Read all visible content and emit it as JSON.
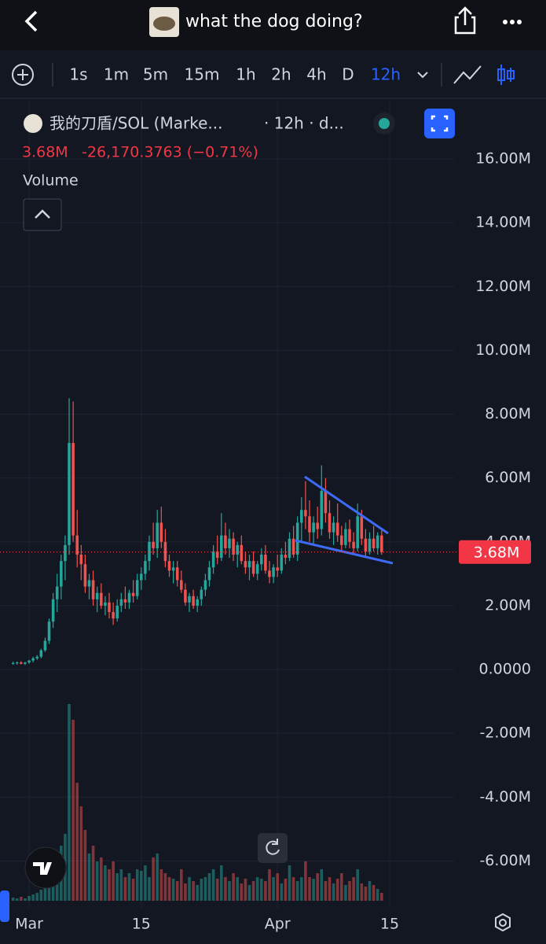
{
  "header": {
    "title": "what the dog doing?"
  },
  "toolbar": {
    "intervals": [
      "1s",
      "1m",
      "5m",
      "15m",
      "1h",
      "2h",
      "4h",
      "D",
      "12h"
    ]
  },
  "legend": {
    "symbol": "我的刀盾/SOL (Marke...",
    "meta": "· 12h · d...",
    "price": "3.68M",
    "change": "-26,170.3763 (−0.71%)",
    "volume_label": "Volume"
  },
  "chart_data": {
    "type": "candlestick",
    "x": [
      -2,
      -1.5,
      -1,
      -0.5,
      0,
      0.5,
      1,
      1.5,
      2,
      2.5,
      3,
      3.5,
      4,
      4.5,
      5,
      5.5,
      6,
      6.5,
      7,
      7.5,
      8,
      8.5,
      9,
      9.5,
      10,
      10.5,
      11,
      11.5,
      12,
      12.5,
      13,
      13.5,
      14,
      14.5,
      15,
      15.5,
      16,
      16.5,
      17,
      17.5,
      18,
      18.5,
      19,
      19.5,
      20,
      20.5,
      21,
      21.5,
      22,
      22.5,
      23,
      23.5,
      24,
      24.5,
      25,
      25.5,
      26,
      26.5,
      27,
      27.5,
      28,
      28.5,
      29,
      29.5,
      30,
      30.5,
      31,
      31.5,
      32,
      32.5,
      33,
      33.5,
      34,
      34.5,
      35,
      35.5,
      36,
      36.5,
      37,
      37.5,
      38,
      38.5,
      39,
      39.5,
      40,
      40.5,
      41,
      41.5,
      42,
      42.5,
      43,
      43.5,
      44
    ],
    "ohlc": [
      [
        0.2,
        0.25,
        0.15,
        0.2
      ],
      [
        0.2,
        0.25,
        0.15,
        0.22
      ],
      [
        0.22,
        0.26,
        0.16,
        0.18
      ],
      [
        0.18,
        0.24,
        0.14,
        0.22
      ],
      [
        0.22,
        0.3,
        0.18,
        0.28
      ],
      [
        0.28,
        0.4,
        0.22,
        0.35
      ],
      [
        0.35,
        0.45,
        0.3,
        0.4
      ],
      [
        0.4,
        0.65,
        0.35,
        0.6
      ],
      [
        0.6,
        1.0,
        0.55,
        0.9
      ],
      [
        0.9,
        1.6,
        0.8,
        1.5
      ],
      [
        1.5,
        2.4,
        1.3,
        2.2
      ],
      [
        2.2,
        3.0,
        1.8,
        2.6
      ],
      [
        2.6,
        3.6,
        2.2,
        3.4
      ],
      [
        3.4,
        4.2,
        2.8,
        3.9
      ],
      [
        3.9,
        8.5,
        3.6,
        7.1
      ],
      [
        7.1,
        8.4,
        4.0,
        4.2
      ],
      [
        4.2,
        5.0,
        3.2,
        3.6
      ],
      [
        3.6,
        3.9,
        2.8,
        3.3
      ],
      [
        3.3,
        3.6,
        2.4,
        2.6
      ],
      [
        2.6,
        3.0,
        2.2,
        2.8
      ],
      [
        2.8,
        3.1,
        2.0,
        2.2
      ],
      [
        2.2,
        2.6,
        1.8,
        2.4
      ],
      [
        2.4,
        2.7,
        1.9,
        2.0
      ],
      [
        2.0,
        2.3,
        1.7,
        2.1
      ],
      [
        2.1,
        2.4,
        1.6,
        1.8
      ],
      [
        1.8,
        2.1,
        1.4,
        1.6
      ],
      [
        1.6,
        2.2,
        1.5,
        2.0
      ],
      [
        2.0,
        2.4,
        1.8,
        2.2
      ],
      [
        2.2,
        2.6,
        1.9,
        2.1
      ],
      [
        2.1,
        2.5,
        1.9,
        2.4
      ],
      [
        2.4,
        2.8,
        2.1,
        2.3
      ],
      [
        2.3,
        3.0,
        2.2,
        2.8
      ],
      [
        2.8,
        3.2,
        2.5,
        3.0
      ],
      [
        3.0,
        3.6,
        2.8,
        3.4
      ],
      [
        3.4,
        4.2,
        3.1,
        4.0
      ],
      [
        4.0,
        4.6,
        3.6,
        3.8
      ],
      [
        3.8,
        5.0,
        3.5,
        4.6
      ],
      [
        4.6,
        5.1,
        3.8,
        4.0
      ],
      [
        4.0,
        4.4,
        3.2,
        3.4
      ],
      [
        3.4,
        3.6,
        2.9,
        3.1
      ],
      [
        3.1,
        3.4,
        2.7,
        3.2
      ],
      [
        3.2,
        3.4,
        2.6,
        2.8
      ],
      [
        2.8,
        3.1,
        2.4,
        2.5
      ],
      [
        2.5,
        2.7,
        2.0,
        2.1
      ],
      [
        2.1,
        2.4,
        1.8,
        2.3
      ],
      [
        2.3,
        2.5,
        1.9,
        2.0
      ],
      [
        2.0,
        2.3,
        1.8,
        2.2
      ],
      [
        2.2,
        2.6,
        2.0,
        2.5
      ],
      [
        2.5,
        3.0,
        2.3,
        2.8
      ],
      [
        2.8,
        3.4,
        2.6,
        3.2
      ],
      [
        3.2,
        3.9,
        3.0,
        3.7
      ],
      [
        3.7,
        4.2,
        3.3,
        3.5
      ],
      [
        3.5,
        4.9,
        3.4,
        4.2
      ],
      [
        4.2,
        4.6,
        3.6,
        3.8
      ],
      [
        3.8,
        4.4,
        3.5,
        4.1
      ],
      [
        4.1,
        4.3,
        3.4,
        3.6
      ],
      [
        3.6,
        4.0,
        3.2,
        3.9
      ],
      [
        3.9,
        4.2,
        3.3,
        3.4
      ],
      [
        3.4,
        3.7,
        3.0,
        3.2
      ],
      [
        3.2,
        3.6,
        2.8,
        3.4
      ],
      [
        3.4,
        3.7,
        2.9,
        3.0
      ],
      [
        3.0,
        3.4,
        2.8,
        3.3
      ],
      [
        3.3,
        3.8,
        3.1,
        3.6
      ],
      [
        3.6,
        3.9,
        3.0,
        3.1
      ],
      [
        3.1,
        3.4,
        2.7,
        2.9
      ],
      [
        2.9,
        3.3,
        2.7,
        3.2
      ],
      [
        3.2,
        3.6,
        2.9,
        3.1
      ],
      [
        3.1,
        3.8,
        3.0,
        3.6
      ],
      [
        3.6,
        4.0,
        3.3,
        3.5
      ],
      [
        3.5,
        4.3,
        3.4,
        4.1
      ],
      [
        4.1,
        4.5,
        3.5,
        3.6
      ],
      [
        3.6,
        4.8,
        3.4,
        4.6
      ],
      [
        4.6,
        5.4,
        4.0,
        5.0
      ],
      [
        5.0,
        5.9,
        4.4,
        4.8
      ],
      [
        4.8,
        5.3,
        4.0,
        4.3
      ],
      [
        4.3,
        4.8,
        3.9,
        4.6
      ],
      [
        4.6,
        5.1,
        4.1,
        4.4
      ],
      [
        4.4,
        6.4,
        4.2,
        5.6
      ],
      [
        5.6,
        6.0,
        4.6,
        4.9
      ],
      [
        4.9,
        5.3,
        4.1,
        4.3
      ],
      [
        4.3,
        4.8,
        3.9,
        4.6
      ],
      [
        4.6,
        5.2,
        4.0,
        4.2
      ],
      [
        4.2,
        4.5,
        3.7,
        3.9
      ],
      [
        3.9,
        4.6,
        3.8,
        4.4
      ],
      [
        4.4,
        4.7,
        3.8,
        4.0
      ],
      [
        4.0,
        4.3,
        3.6,
        3.8
      ],
      [
        3.8,
        5.2,
        3.7,
        4.8
      ],
      [
        4.8,
        5.0,
        3.9,
        4.1
      ],
      [
        4.1,
        4.4,
        3.5,
        3.7
      ],
      [
        3.7,
        4.3,
        3.6,
        4.1
      ],
      [
        4.1,
        4.5,
        3.7,
        3.8
      ],
      [
        3.8,
        4.3,
        3.6,
        4.2
      ],
      [
        4.2,
        4.4,
        3.6,
        3.68
      ]
    ],
    "volume": [
      4,
      3,
      5,
      3,
      6,
      8,
      10,
      14,
      20,
      30,
      45,
      60,
      70,
      85,
      250,
      230,
      150,
      120,
      90,
      60,
      70,
      50,
      55,
      45,
      40,
      50,
      35,
      40,
      30,
      35,
      28,
      40,
      38,
      45,
      30,
      55,
      60,
      40,
      35,
      30,
      28,
      25,
      40,
      22,
      30,
      25,
      20,
      28,
      30,
      35,
      40,
      28,
      45,
      30,
      25,
      35,
      30,
      22,
      28,
      20,
      25,
      30,
      28,
      25,
      40,
      30,
      35,
      22,
      28,
      45,
      30,
      25,
      30,
      50,
      30,
      28,
      35,
      40,
      25,
      30,
      22,
      28,
      35,
      20,
      25,
      30,
      40,
      22,
      18,
      25,
      20,
      15,
      10
    ],
    "up_color": "#26a69a",
    "down_color": "#ef5350",
    "xlim": [
      -3.63,
      53.04
    ],
    "xticks": [
      {
        "value": 0,
        "label": "Mar"
      },
      {
        "value": 14,
        "label": "15"
      },
      {
        "value": 31,
        "label": "Apr"
      },
      {
        "value": 45,
        "label": "15"
      }
    ],
    "ylim": [
      -7.37,
      17.53
    ],
    "yticks": [
      {
        "value": 16,
        "label": "16.00M"
      },
      {
        "value": 14,
        "label": "14.00M"
      },
      {
        "value": 12,
        "label": "12.00M"
      },
      {
        "value": 10,
        "label": "10.00M"
      },
      {
        "value": 8,
        "label": "8.00M"
      },
      {
        "value": 6,
        "label": "6.00M"
      },
      {
        "value": 4,
        "label": "4.00M"
      },
      {
        "value": 2,
        "label": "2.00M"
      },
      {
        "value": 0,
        "label": "0.0000"
      },
      {
        "value": -2,
        "label": "-2.00M"
      },
      {
        "value": -4,
        "label": "-4.00M"
      },
      {
        "value": -6,
        "label": "-6.00M"
      }
    ],
    "last_price": {
      "value": 3.68,
      "label": "3.68M"
    },
    "grid": true
  }
}
